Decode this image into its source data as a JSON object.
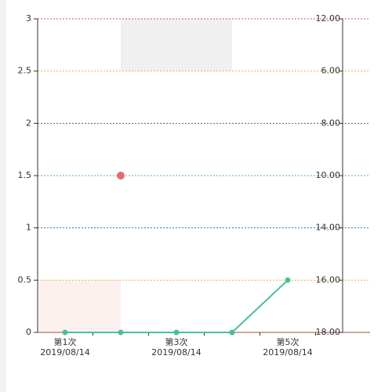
{
  "chart_data": {
    "type": "line",
    "categories": [
      "第1次",
      null,
      "第3次",
      null,
      "第5次"
    ],
    "category_dates": [
      "2019/08/14",
      null,
      "2019/08/14",
      null,
      "2019/08/14"
    ],
    "series": [
      {
        "color": "#4dbd9a",
        "values": [
          0,
          0,
          0,
          0,
          0.5
        ]
      },
      {
        "color": "#e06c75",
        "values": [
          null,
          1.5,
          null,
          null,
          null
        ]
      }
    ],
    "ylim": [
      0,
      3
    ],
    "yticks": [
      0,
      0.5,
      1,
      1.5,
      2,
      2.5,
      3
    ],
    "y2_labels": [
      "18.00",
      "16.00",
      "14.00",
      "10.00",
      "8.00",
      "6.00",
      "12.00"
    ],
    "grid": true,
    "grid_colors": [
      "#a94442",
      "#f0ad4e",
      "#337ab7",
      "#5cb85c",
      "#31708f",
      "#f0ad4e",
      "#d9534f"
    ],
    "bands": [
      {
        "ylim": [
          0,
          0.5
        ],
        "color": "#fdf1f0"
      },
      {
        "ylim": [
          2.5,
          3
        ],
        "color": "#f0f0f0"
      }
    ]
  }
}
